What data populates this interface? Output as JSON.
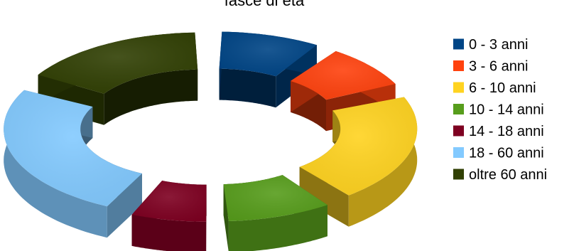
{
  "chart_data": {
    "type": "pie",
    "variant": "3d-exploded-donut",
    "title": "fasce di età",
    "legend_position": "right",
    "categories": [
      "0 - 3 anni",
      "3 - 6 anni",
      "6 - 10 anni",
      "10 - 14 anni",
      "14 - 18 anni",
      "18 - 60 anni",
      "oltre 60 anni"
    ],
    "values": [
      9.5,
      9,
      21,
      10,
      7.5,
      26,
      17
    ],
    "colors": [
      "#004586",
      "#ff420e",
      "#ffd320",
      "#579d1c",
      "#7e0021",
      "#83caff",
      "#314004"
    ]
  }
}
